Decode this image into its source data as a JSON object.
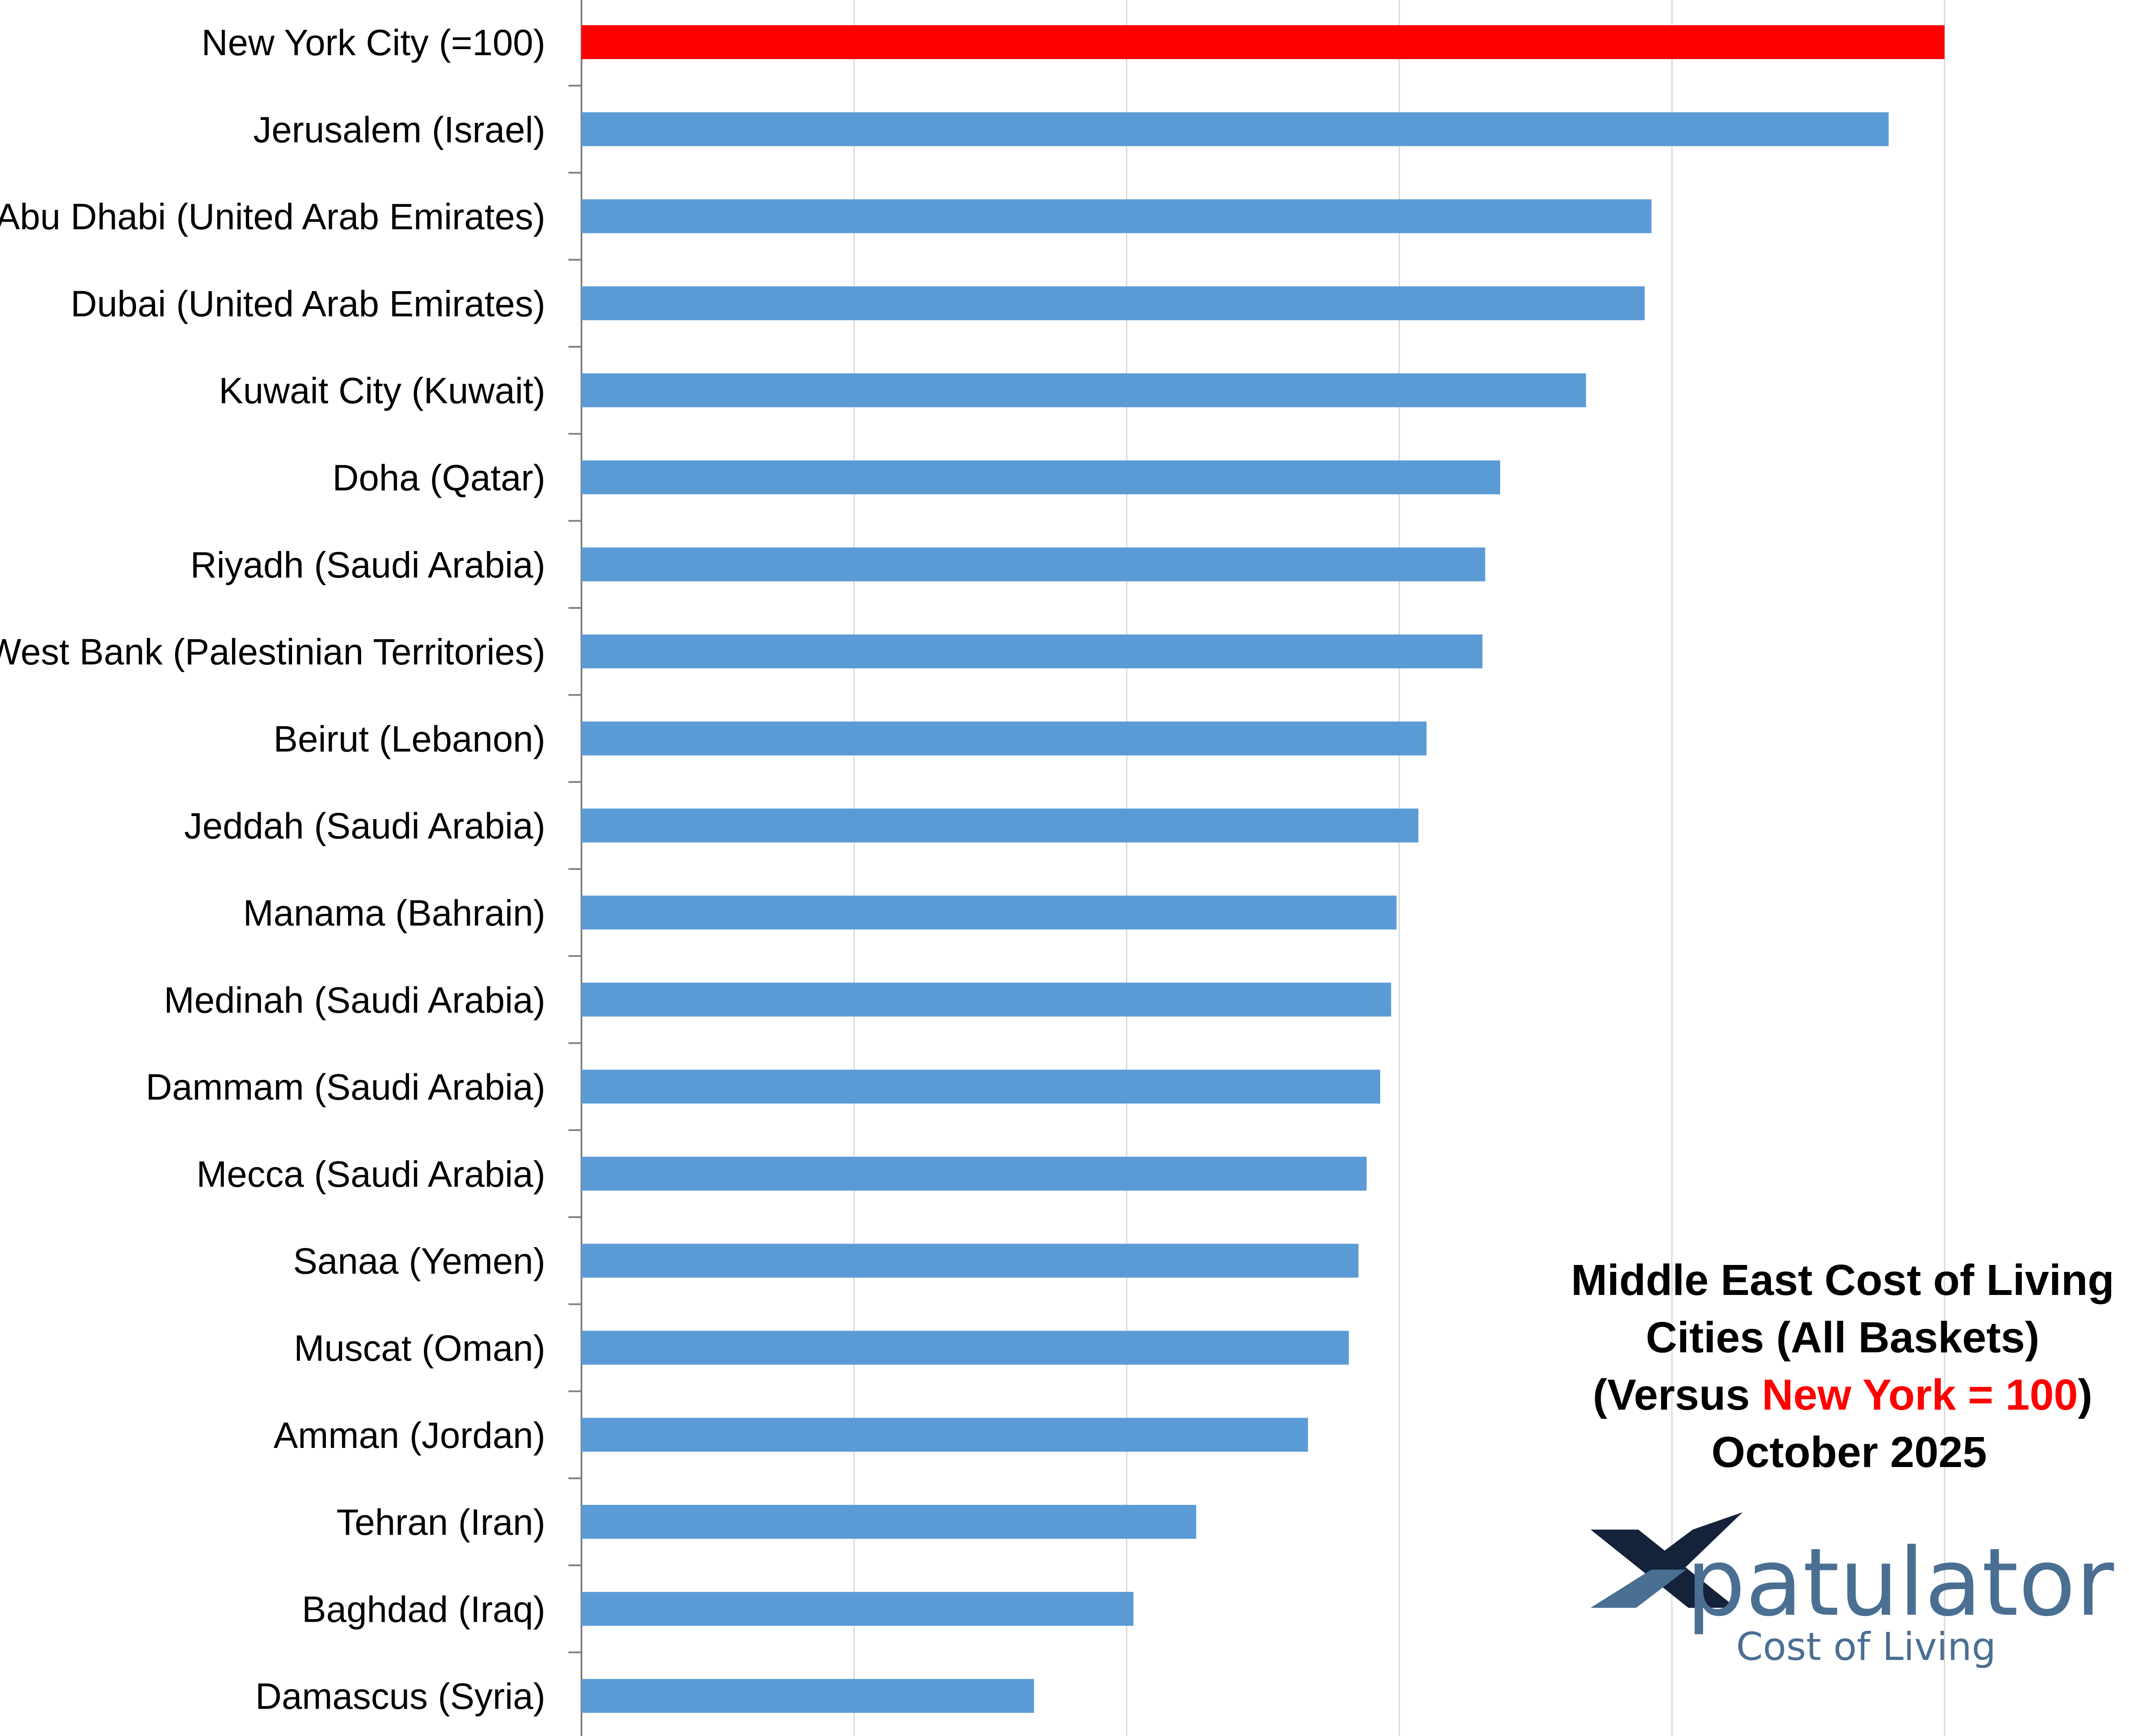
{
  "chart_data": {
    "type": "bar",
    "orientation": "horizontal",
    "categories": [
      "New York City (=100)",
      "Jerusalem (Israel)",
      "Abu Dhabi (United Arab Emirates)",
      "Dubai (United Arab Emirates)",
      "Kuwait City (Kuwait)",
      "Doha (Qatar)",
      "Riyadh (Saudi Arabia)",
      "West Bank (Palestinian Territories)",
      "Beirut (Lebanon)",
      "Jeddah (Saudi Arabia)",
      "Manama (Bahrain)",
      "Medinah (Saudi Arabia)",
      "Dammam (Saudi Arabia)",
      "Mecca (Saudi Arabia)",
      "Sanaa (Yemen)",
      "Muscat (Oman)",
      "Amman (Jordan)",
      "Tehran (Iran)",
      "Baghdad (Iraq)",
      "Damascus (Syria)"
    ],
    "values": [
      100,
      95.9,
      78.5,
      78.0,
      73.7,
      67.4,
      66.3,
      66.1,
      62.0,
      61.4,
      59.8,
      59.4,
      58.6,
      57.6,
      57.0,
      56.3,
      53.3,
      45.1,
      40.5,
      33.2
    ],
    "xlim": [
      0,
      115
    ],
    "gridlines": [
      0,
      20,
      40,
      60,
      80,
      100,
      115
    ],
    "grid": true,
    "tick_labels_shown": false,
    "colors": {
      "highlight_bar": "#ff0000",
      "bar": "#5b9bd5",
      "gridline": "#d9d9d9",
      "axis": "#7f7f7f"
    },
    "title_block": {
      "line1": "Middle East  Cost of Living",
      "line2": "Cities (All Baskets)",
      "line3_prefix": "(Versus ",
      "line3_highlight": "New York = 100",
      "line3_suffix": ")",
      "line4": "October 2025"
    }
  },
  "logo": {
    "name": "Xpatulator",
    "wordmark": "patulator",
    "tagline": "Cost of Living",
    "colors": {
      "dark": "#14233a",
      "accent": "#4a6f93"
    }
  }
}
